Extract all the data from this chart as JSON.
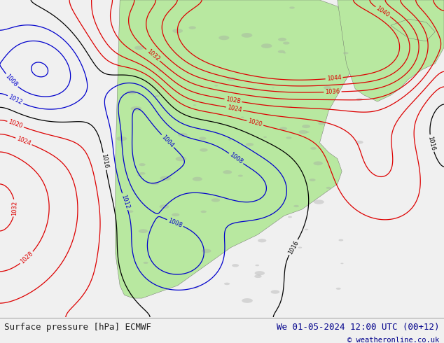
{
  "title_left": "Surface pressure [hPa] ECMWF",
  "title_right": "We 01-05-2024 12:00 UTC (00+12)",
  "copyright": "© weatheronline.co.uk",
  "ocean_color": "#e8e8e8",
  "land_color": "#b8e8a0",
  "terrain_color": "#a0a0a0",
  "fig_width": 6.34,
  "fig_height": 4.9,
  "dpi": 100,
  "bottom_bar_color": "#f0f0f0",
  "text_color_left": "#202020",
  "text_color_right": "#00008b",
  "red_isobar": "#dd0000",
  "blue_isobar": "#0000cc",
  "black_isobar": "#000000",
  "font_size_bottom": 9
}
